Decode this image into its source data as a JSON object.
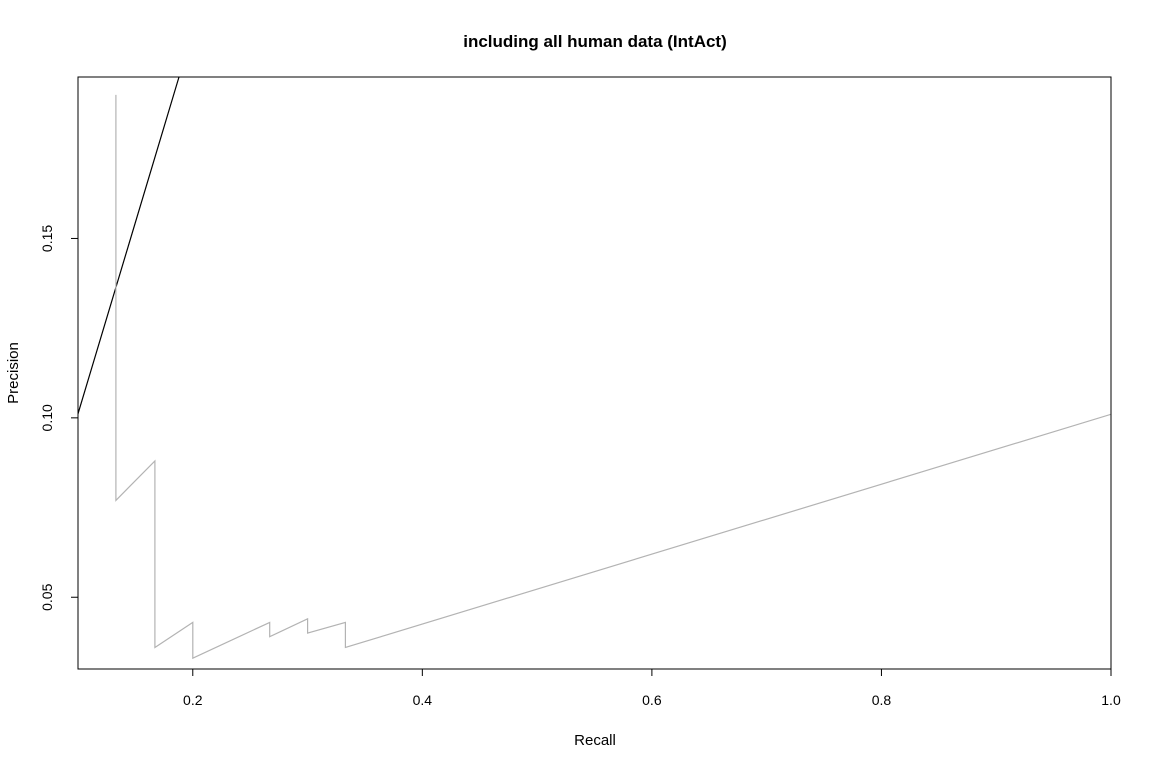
{
  "chart_data": {
    "type": "line",
    "title": "including all human data (IntAct)",
    "xlabel": "Recall",
    "ylabel": "Precision",
    "xlim": [
      0.1,
      1.0
    ],
    "ylim": [
      0.03,
      0.195
    ],
    "x_ticks": [
      0.2,
      0.4,
      0.6,
      0.8,
      1.0
    ],
    "x_tick_labels": [
      "0.2",
      "0.4",
      "0.6",
      "0.8",
      "1.0"
    ],
    "y_ticks": [
      0.05,
      0.1,
      0.15
    ],
    "y_tick_labels": [
      "0.05",
      "0.10",
      "0.15"
    ],
    "grid": false,
    "legend": "none",
    "series": [
      {
        "color": "#000000",
        "x": [
          0.098,
          0.188
        ],
        "y": [
          0.099,
          0.195
        ]
      },
      {
        "color": "#b3b3b3",
        "x": [
          0.133,
          0.133,
          0.167,
          0.167,
          0.2,
          0.2,
          0.267,
          0.267,
          0.3,
          0.3,
          0.333,
          0.333,
          1.0
        ],
        "y": [
          0.19,
          0.077,
          0.088,
          0.036,
          0.043,
          0.033,
          0.043,
          0.039,
          0.044,
          0.04,
          0.043,
          0.036,
          0.101
        ]
      }
    ]
  }
}
